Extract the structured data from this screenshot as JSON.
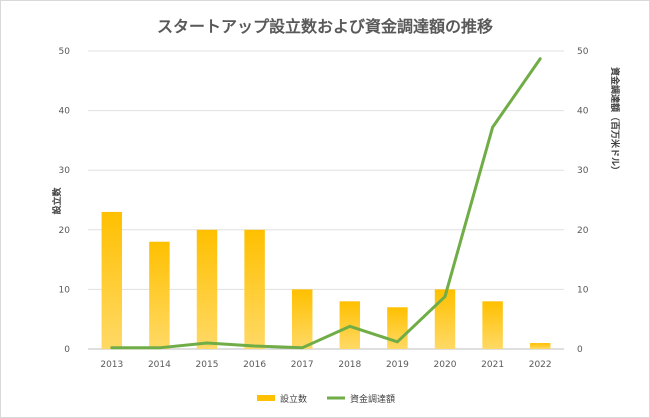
{
  "chart_data": {
    "type": "bar",
    "title": "スタートアップ設立数および資金調達額の推移",
    "categories": [
      "2013",
      "2014",
      "2015",
      "2016",
      "2017",
      "2018",
      "2019",
      "2020",
      "2021",
      "2022"
    ],
    "ylabel": "設立数",
    "y2label": "資金調達額（百万米ドル）",
    "ylim": [
      0,
      50
    ],
    "y2lim": [
      0,
      50
    ],
    "yticks": [
      "0",
      "10",
      "20",
      "30",
      "40",
      "50"
    ],
    "y2ticks": [
      "0",
      "10",
      "20",
      "30",
      "40",
      "50"
    ],
    "grid": true,
    "legend_position": "bottom",
    "series": [
      {
        "name": "設立数",
        "type": "bar",
        "axis": "left",
        "color": "#FFC000",
        "values": [
          23,
          18,
          20,
          20,
          10,
          8,
          7,
          10,
          8,
          1
        ]
      },
      {
        "name": "資金調達額",
        "type": "line",
        "axis": "right",
        "color": "#70AD47",
        "values": [
          0.2,
          0.2,
          1.0,
          0.5,
          0.2,
          3.8,
          1.2,
          8.8,
          37.2,
          48.7
        ]
      }
    ]
  }
}
